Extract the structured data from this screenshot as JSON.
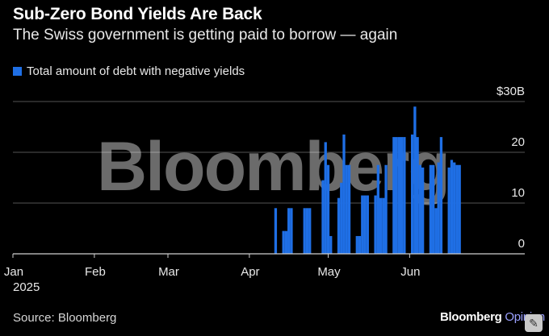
{
  "header": {
    "title": "Sub-Zero Bond Yields Are Back",
    "subtitle": "The Swiss government is getting paid to borrow — again"
  },
  "legend": {
    "label": "Total amount of debt with negative yields"
  },
  "footer": {
    "source": "Source: Bloomberg",
    "brand": "Bloomberg",
    "brand_suffix": "Opinion"
  },
  "watermark": "Bloomberg",
  "colors": {
    "background": "#000000",
    "bar": "#1f6fe5",
    "grid": "#555555",
    "text": "#ffffff"
  },
  "chart_data": {
    "type": "bar",
    "series": [
      {
        "name": "Total amount of debt with negative yields",
        "unit": "$B",
        "x": [
          "2025-04-11",
          "2025-04-14",
          "2025-04-15",
          "2025-04-16",
          "2025-04-17",
          "2025-04-22",
          "2025-04-23",
          "2025-04-24",
          "2025-04-29",
          "2025-04-30",
          "2025-05-01",
          "2025-05-02",
          "2025-05-05",
          "2025-05-06",
          "2025-05-07",
          "2025-05-08",
          "2025-05-09",
          "2025-05-12",
          "2025-05-13",
          "2025-05-14",
          "2025-05-15",
          "2025-05-16",
          "2025-05-19",
          "2025-05-20",
          "2025-05-21",
          "2025-05-22",
          "2025-05-23",
          "2025-05-26",
          "2025-05-27",
          "2025-05-28",
          "2025-05-29",
          "2025-05-30",
          "2025-06-02",
          "2025-06-03",
          "2025-06-04",
          "2025-06-05",
          "2025-06-06",
          "2025-06-09",
          "2025-06-10",
          "2025-06-11",
          "2025-06-12",
          "2025-06-13",
          "2025-06-16",
          "2025-06-17",
          "2025-06-18",
          "2025-06-19",
          "2025-06-20"
        ],
        "values": [
          9,
          4.5,
          4.5,
          9,
          9,
          9,
          9,
          9,
          14.5,
          22,
          17.5,
          3.5,
          11,
          14,
          23.5,
          17.5,
          17.5,
          3.5,
          3.5,
          11.5,
          11.5,
          11.5,
          11.5,
          17.5,
          11,
          11,
          17.5,
          23,
          23,
          23,
          23,
          23,
          23.5,
          29,
          23,
          17.5,
          17,
          17.5,
          17.5,
          9,
          18,
          23,
          17,
          18.5,
          18,
          17.5,
          17.5
        ]
      }
    ],
    "x_ticks": [
      "Jan",
      "Feb",
      "Mar",
      "Apr",
      "May",
      "Jun"
    ],
    "x_tick_dates": [
      "2025-01-01",
      "2025-02-01",
      "2025-03-01",
      "2025-04-01",
      "2025-05-01",
      "2025-06-01"
    ],
    "x_year_label": "2025",
    "xlim": [
      "2025-01-01",
      "2025-07-01"
    ],
    "y_ticks": [
      "0",
      "10",
      "20",
      "$30B"
    ],
    "y_tick_values": [
      0,
      10,
      20,
      30
    ],
    "ylim": [
      0,
      30
    ],
    "grid": true,
    "legend_position": "top-left"
  }
}
